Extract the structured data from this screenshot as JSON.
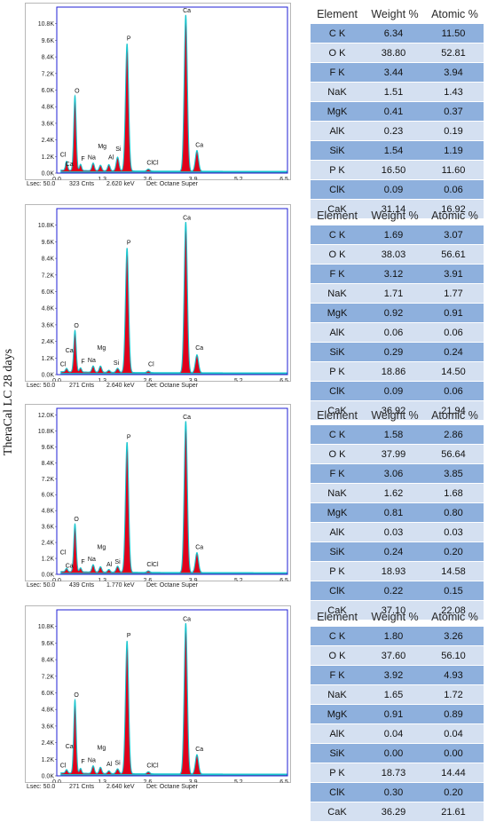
{
  "side_label": "TheraCal LC 28 days",
  "table_headers": [
    "Element",
    "Weight %",
    "Atomic %"
  ],
  "colors": {
    "spectrum_fill": "#e0001b",
    "spectrum_line": "#19c6cf",
    "axis_frame": "#1f1fd6",
    "row_dark": "#8eb0dd",
    "row_light": "#d4e0f1"
  },
  "chart_data": [
    {
      "type": "area",
      "x_ticks": [
        "0.0",
        "1.3",
        "2.6",
        "3.9",
        "5.2",
        "6.5"
      ],
      "xlim": [
        0,
        6.6
      ],
      "y_ticks": [
        "0.0K",
        "1.2K",
        "2.4K",
        "3.6K",
        "4.8K",
        "6.0K",
        "7.2K",
        "8.4K",
        "9.6K",
        "10.8K"
      ],
      "ylim": [
        0,
        12.0
      ],
      "peaks": [
        {
          "element": "C",
          "x": 0.28,
          "y": 0.65,
          "w": 0.03
        },
        {
          "element": "O",
          "x": 0.52,
          "y": 5.4,
          "w": 0.035
        },
        {
          "element": "F",
          "x": 0.68,
          "y": 0.45,
          "w": 0.03
        },
        {
          "element": "Na",
          "x": 1.04,
          "y": 0.55,
          "w": 0.035
        },
        {
          "element": "Mg",
          "x": 1.25,
          "y": 0.4,
          "w": 0.035
        },
        {
          "element": "Al",
          "x": 1.49,
          "y": 0.45,
          "w": 0.035
        },
        {
          "element": "Si",
          "x": 1.74,
          "y": 1.0,
          "w": 0.04
        },
        {
          "element": "P",
          "x": 2.01,
          "y": 9.2,
          "w": 0.045
        },
        {
          "element": "Cl",
          "x": 2.62,
          "y": 0.15,
          "w": 0.04
        },
        {
          "element": "Ca",
          "x": 3.69,
          "y": 11.3,
          "w": 0.045
        },
        {
          "element": "Ca",
          "x": 4.01,
          "y": 1.5,
          "w": 0.045
        }
      ],
      "labels": [
        {
          "text": "Cl",
          "x": 0.18,
          "y": 1.2
        },
        {
          "text": "Ca",
          "x": 0.36,
          "y": 0.5
        },
        {
          "text": "O",
          "x": 0.58,
          "y": 5.8
        },
        {
          "text": "F",
          "x": 0.75,
          "y": 0.9
        },
        {
          "text": "Na",
          "x": 1.0,
          "y": 1.0
        },
        {
          "text": "Mg",
          "x": 1.3,
          "y": 1.8
        },
        {
          "text": "Al",
          "x": 1.55,
          "y": 1.0
        },
        {
          "text": "Si",
          "x": 1.76,
          "y": 1.6
        },
        {
          "text": "P",
          "x": 2.06,
          "y": 9.6
        },
        {
          "text": "ClCl",
          "x": 2.74,
          "y": 0.6
        },
        {
          "text": "Ca",
          "x": 3.72,
          "y": 11.6
        },
        {
          "text": "Ca",
          "x": 4.08,
          "y": 1.9
        }
      ],
      "status": {
        "lsec": "Lsec: 50.0",
        "cnts": "323 Cnts",
        "kev": "2.620 keV",
        "det": "Det: Octane Super"
      },
      "table": [
        [
          "C K",
          "6.34",
          "11.50"
        ],
        [
          "O K",
          "38.80",
          "52.81"
        ],
        [
          "F K",
          "3.44",
          "3.94"
        ],
        [
          "NaK",
          "1.51",
          "1.43"
        ],
        [
          "MgK",
          "0.41",
          "0.37"
        ],
        [
          "AlK",
          "0.23",
          "0.19"
        ],
        [
          "SiK",
          "1.54",
          "1.19"
        ],
        [
          "P K",
          "16.50",
          "11.60"
        ],
        [
          "ClK",
          "0.09",
          "0.06"
        ],
        [
          "CaK",
          "31.14",
          "16.92"
        ]
      ]
    },
    {
      "type": "area",
      "x_ticks": [
        "0.0",
        "1.3",
        "2.6",
        "3.9",
        "5.2",
        "6.5"
      ],
      "xlim": [
        0,
        6.6
      ],
      "y_ticks": [
        "0.0K",
        "1.2K",
        "2.4K",
        "3.6K",
        "4.8K",
        "6.0K",
        "7.2K",
        "8.4K",
        "9.6K",
        "10.8K"
      ],
      "ylim": [
        0,
        12.0
      ],
      "peaks": [
        {
          "element": "C",
          "x": 0.28,
          "y": 0.25,
          "w": 0.03
        },
        {
          "element": "O",
          "x": 0.52,
          "y": 3.0,
          "w": 0.035
        },
        {
          "element": "F",
          "x": 0.68,
          "y": 0.3,
          "w": 0.03
        },
        {
          "element": "Na",
          "x": 1.04,
          "y": 0.45,
          "w": 0.035
        },
        {
          "element": "Mg",
          "x": 1.25,
          "y": 0.45,
          "w": 0.035
        },
        {
          "element": "Al",
          "x": 1.49,
          "y": 0.15,
          "w": 0.035
        },
        {
          "element": "Si",
          "x": 1.74,
          "y": 0.3,
          "w": 0.04
        },
        {
          "element": "P",
          "x": 2.01,
          "y": 9.0,
          "w": 0.045
        },
        {
          "element": "Cl",
          "x": 2.62,
          "y": 0.12,
          "w": 0.04
        },
        {
          "element": "Ca",
          "x": 3.69,
          "y": 10.9,
          "w": 0.045
        },
        {
          "element": "Ca",
          "x": 4.01,
          "y": 1.3,
          "w": 0.045
        }
      ],
      "labels": [
        {
          "text": "Cl",
          "x": 0.18,
          "y": 0.6
        },
        {
          "text": "Ca",
          "x": 0.36,
          "y": 1.6
        },
        {
          "text": "O",
          "x": 0.56,
          "y": 3.4
        },
        {
          "text": "F",
          "x": 0.75,
          "y": 0.8
        },
        {
          "text": "Na",
          "x": 1.0,
          "y": 0.9
        },
        {
          "text": "Mg",
          "x": 1.28,
          "y": 1.8
        },
        {
          "text": "Si",
          "x": 1.7,
          "y": 0.7
        },
        {
          "text": "P",
          "x": 2.06,
          "y": 9.4
        },
        {
          "text": "Cl",
          "x": 2.7,
          "y": 0.6
        },
        {
          "text": "Ca",
          "x": 3.72,
          "y": 11.2
        },
        {
          "text": "Ca",
          "x": 4.08,
          "y": 1.8
        }
      ],
      "status": {
        "lsec": "Lsec: 50.0",
        "cnts": "271 Cnts",
        "kev": "2.640 keV",
        "det": "Det: Octane Super"
      },
      "table": [
        [
          "C K",
          "1.69",
          "3.07"
        ],
        [
          "O K",
          "38.03",
          "56.61"
        ],
        [
          "F K",
          "3.12",
          "3.91"
        ],
        [
          "NaK",
          "1.71",
          "1.77"
        ],
        [
          "MgK",
          "0.92",
          "0.91"
        ],
        [
          "AlK",
          "0.06",
          "0.06"
        ],
        [
          "SiK",
          "0.29",
          "0.24"
        ],
        [
          "P K",
          "18.86",
          "14.50"
        ],
        [
          "ClK",
          "0.09",
          "0.06"
        ],
        [
          "CaK",
          "36.92",
          "21.94"
        ]
      ]
    },
    {
      "type": "area",
      "x_ticks": [
        "0.0",
        "1.3",
        "2.6",
        "3.9",
        "5.2",
        "6.5"
      ],
      "xlim": [
        0,
        6.6
      ],
      "y_ticks": [
        "0.0K",
        "1.2K",
        "2.4K",
        "3.6K",
        "4.8K",
        "6.0K",
        "7.2K",
        "8.4K",
        "9.6K",
        "10.8K",
        "12.0K"
      ],
      "ylim": [
        0,
        12.5
      ],
      "peaks": [
        {
          "element": "C",
          "x": 0.28,
          "y": 0.25,
          "w": 0.03
        },
        {
          "element": "O",
          "x": 0.52,
          "y": 3.6,
          "w": 0.035
        },
        {
          "element": "F",
          "x": 0.68,
          "y": 0.3,
          "w": 0.03
        },
        {
          "element": "Na",
          "x": 1.04,
          "y": 0.55,
          "w": 0.035
        },
        {
          "element": "Mg",
          "x": 1.25,
          "y": 0.4,
          "w": 0.035
        },
        {
          "element": "Al",
          "x": 1.49,
          "y": 0.2,
          "w": 0.035
        },
        {
          "element": "Si",
          "x": 1.74,
          "y": 0.45,
          "w": 0.04
        },
        {
          "element": "P",
          "x": 2.01,
          "y": 9.8,
          "w": 0.045
        },
        {
          "element": "Cl",
          "x": 2.62,
          "y": 0.12,
          "w": 0.04
        },
        {
          "element": "Ca",
          "x": 3.69,
          "y": 11.4,
          "w": 0.045
        },
        {
          "element": "Ca",
          "x": 4.01,
          "y": 1.5,
          "w": 0.045
        }
      ],
      "labels": [
        {
          "text": "Cl",
          "x": 0.18,
          "y": 1.5
        },
        {
          "text": "Ca",
          "x": 0.36,
          "y": 0.5
        },
        {
          "text": "O",
          "x": 0.56,
          "y": 4.0
        },
        {
          "text": "F",
          "x": 0.75,
          "y": 0.8
        },
        {
          "text": "Na",
          "x": 1.0,
          "y": 1.0
        },
        {
          "text": "Mg",
          "x": 1.28,
          "y": 1.9
        },
        {
          "text": "Al",
          "x": 1.5,
          "y": 0.6
        },
        {
          "text": "Si",
          "x": 1.74,
          "y": 0.8
        },
        {
          "text": "P",
          "x": 2.06,
          "y": 10.2
        },
        {
          "text": "ClCl",
          "x": 2.74,
          "y": 0.6
        },
        {
          "text": "Ca",
          "x": 3.72,
          "y": 11.7
        },
        {
          "text": "Ca",
          "x": 4.08,
          "y": 1.9
        }
      ],
      "status": {
        "lsec": "Lsec: 50.0",
        "cnts": "439 Cnts",
        "kev": "1.770 keV",
        "det": "Det: Octane Super"
      },
      "table": [
        [
          "C K",
          "1.58",
          "2.86"
        ],
        [
          "O K",
          "37.99",
          "56.64"
        ],
        [
          "F K",
          "3.06",
          "3.85"
        ],
        [
          "NaK",
          "1.62",
          "1.68"
        ],
        [
          "MgK",
          "0.81",
          "0.80"
        ],
        [
          "AlK",
          "0.03",
          "0.03"
        ],
        [
          "SiK",
          "0.24",
          "0.20"
        ],
        [
          "P K",
          "18.93",
          "14.58"
        ],
        [
          "ClK",
          "0.22",
          "0.15"
        ],
        [
          "CaK",
          "37.10",
          "22.08"
        ]
      ]
    },
    {
      "type": "area",
      "x_ticks": [
        "0.0",
        "1.3",
        "2.6",
        "3.9",
        "5.2",
        "6.5"
      ],
      "xlim": [
        0,
        6.6
      ],
      "y_ticks": [
        "0.0K",
        "1.2K",
        "2.4K",
        "3.6K",
        "4.8K",
        "6.0K",
        "7.2K",
        "8.4K",
        "9.6K",
        "10.8K"
      ],
      "ylim": [
        0,
        12.0
      ],
      "peaks": [
        {
          "element": "C",
          "x": 0.28,
          "y": 0.25,
          "w": 0.03
        },
        {
          "element": "O",
          "x": 0.52,
          "y": 5.3,
          "w": 0.035
        },
        {
          "element": "F",
          "x": 0.68,
          "y": 0.35,
          "w": 0.03
        },
        {
          "element": "Na",
          "x": 1.04,
          "y": 0.55,
          "w": 0.035
        },
        {
          "element": "Mg",
          "x": 1.25,
          "y": 0.45,
          "w": 0.035
        },
        {
          "element": "Al",
          "x": 1.49,
          "y": 0.2,
          "w": 0.035
        },
        {
          "element": "Si",
          "x": 1.74,
          "y": 0.35,
          "w": 0.04
        },
        {
          "element": "P",
          "x": 2.01,
          "y": 9.6,
          "w": 0.045
        },
        {
          "element": "Cl",
          "x": 2.62,
          "y": 0.15,
          "w": 0.04
        },
        {
          "element": "Ca",
          "x": 3.69,
          "y": 10.9,
          "w": 0.045
        },
        {
          "element": "Ca",
          "x": 4.01,
          "y": 1.4,
          "w": 0.045
        }
      ],
      "labels": [
        {
          "text": "Cl",
          "x": 0.18,
          "y": 0.6
        },
        {
          "text": "Ca",
          "x": 0.36,
          "y": 2.0
        },
        {
          "text": "O",
          "x": 0.56,
          "y": 5.7
        },
        {
          "text": "F",
          "x": 0.75,
          "y": 0.9
        },
        {
          "text": "Na",
          "x": 1.0,
          "y": 1.0
        },
        {
          "text": "Mg",
          "x": 1.28,
          "y": 1.9
        },
        {
          "text": "Al",
          "x": 1.5,
          "y": 0.7
        },
        {
          "text": "Si",
          "x": 1.74,
          "y": 0.8
        },
        {
          "text": "P",
          "x": 2.06,
          "y": 10.0
        },
        {
          "text": "ClCl",
          "x": 2.74,
          "y": 0.6
        },
        {
          "text": "Ca",
          "x": 3.72,
          "y": 11.2
        },
        {
          "text": "Ca",
          "x": 4.08,
          "y": 1.8
        }
      ],
      "status": {
        "lsec": "Lsec: 50.0",
        "cnts": "271 Cnts",
        "kev": "2.640 keV",
        "det": "Det: Octane Super"
      },
      "table": [
        [
          "C K",
          "1.80",
          "3.26"
        ],
        [
          "O K",
          "37.60",
          "56.10"
        ],
        [
          "F K",
          "3.92",
          "4.93"
        ],
        [
          "NaK",
          "1.65",
          "1.72"
        ],
        [
          "MgK",
          "0.91",
          "0.89"
        ],
        [
          "AlK",
          "0.04",
          "0.04"
        ],
        [
          "SiK",
          "0.00",
          "0.00"
        ],
        [
          "P K",
          "18.73",
          "14.44"
        ],
        [
          "ClK",
          "0.30",
          "0.20"
        ],
        [
          "CaK",
          "36.29",
          "21.61"
        ]
      ]
    }
  ]
}
